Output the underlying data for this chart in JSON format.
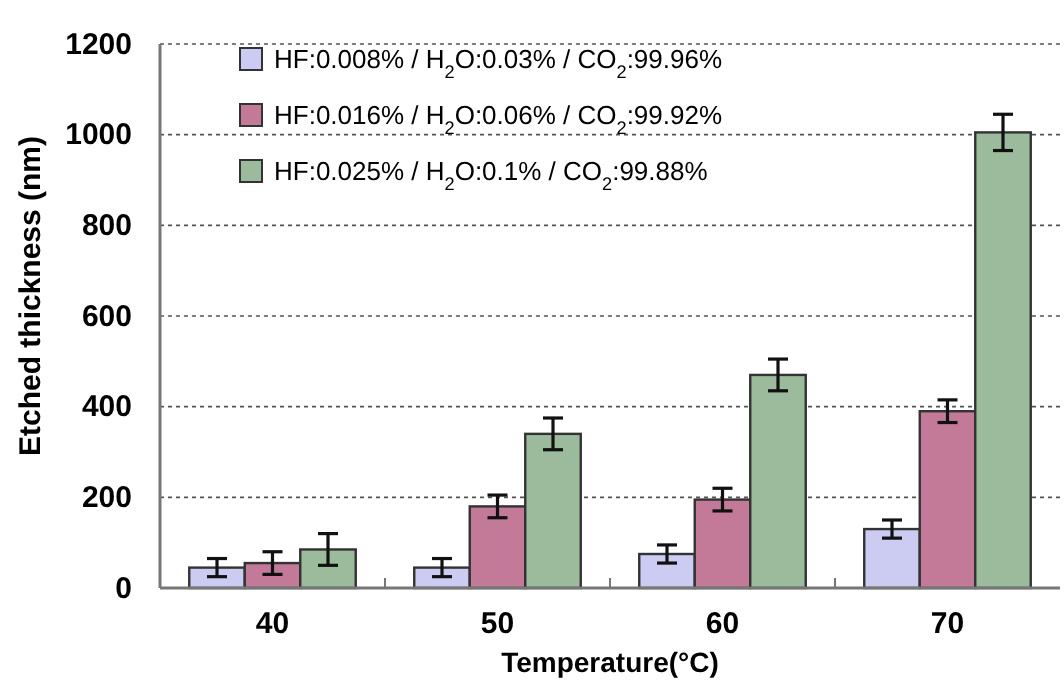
{
  "chart_data": {
    "type": "bar",
    "xlabel": "Temperature(°C)",
    "ylabel": "Etched thickness (nm)",
    "categories": [
      "40",
      "50",
      "60",
      "70"
    ],
    "series": [
      {
        "name": "HF:0.008% / H$_{2}$O:0.03% / CO$_{2}$:99.96%",
        "color": "#ccccf2",
        "values": [
          45,
          45,
          75,
          130
        ],
        "errors": [
          20,
          20,
          20,
          20
        ]
      },
      {
        "name": "HF:0.016% / H$_{2}$O:0.06% / CO$_{2}$:99.92%",
        "color": "#c27a98",
        "values": [
          55,
          180,
          195,
          390
        ],
        "errors": [
          25,
          25,
          25,
          25
        ]
      },
      {
        "name": "HF:0.025% / H$_{2}$O:0.1% / CO$_{2}$:99.88%",
        "color": "#9cbb9c",
        "values": [
          85,
          340,
          470,
          1005
        ],
        "errors": [
          35,
          35,
          35,
          40
        ]
      }
    ],
    "ylim": [
      0,
      1200
    ],
    "yticks": [
      0,
      200,
      400,
      600,
      800,
      1000,
      1200
    ],
    "grid": "y",
    "legend": "top left"
  }
}
